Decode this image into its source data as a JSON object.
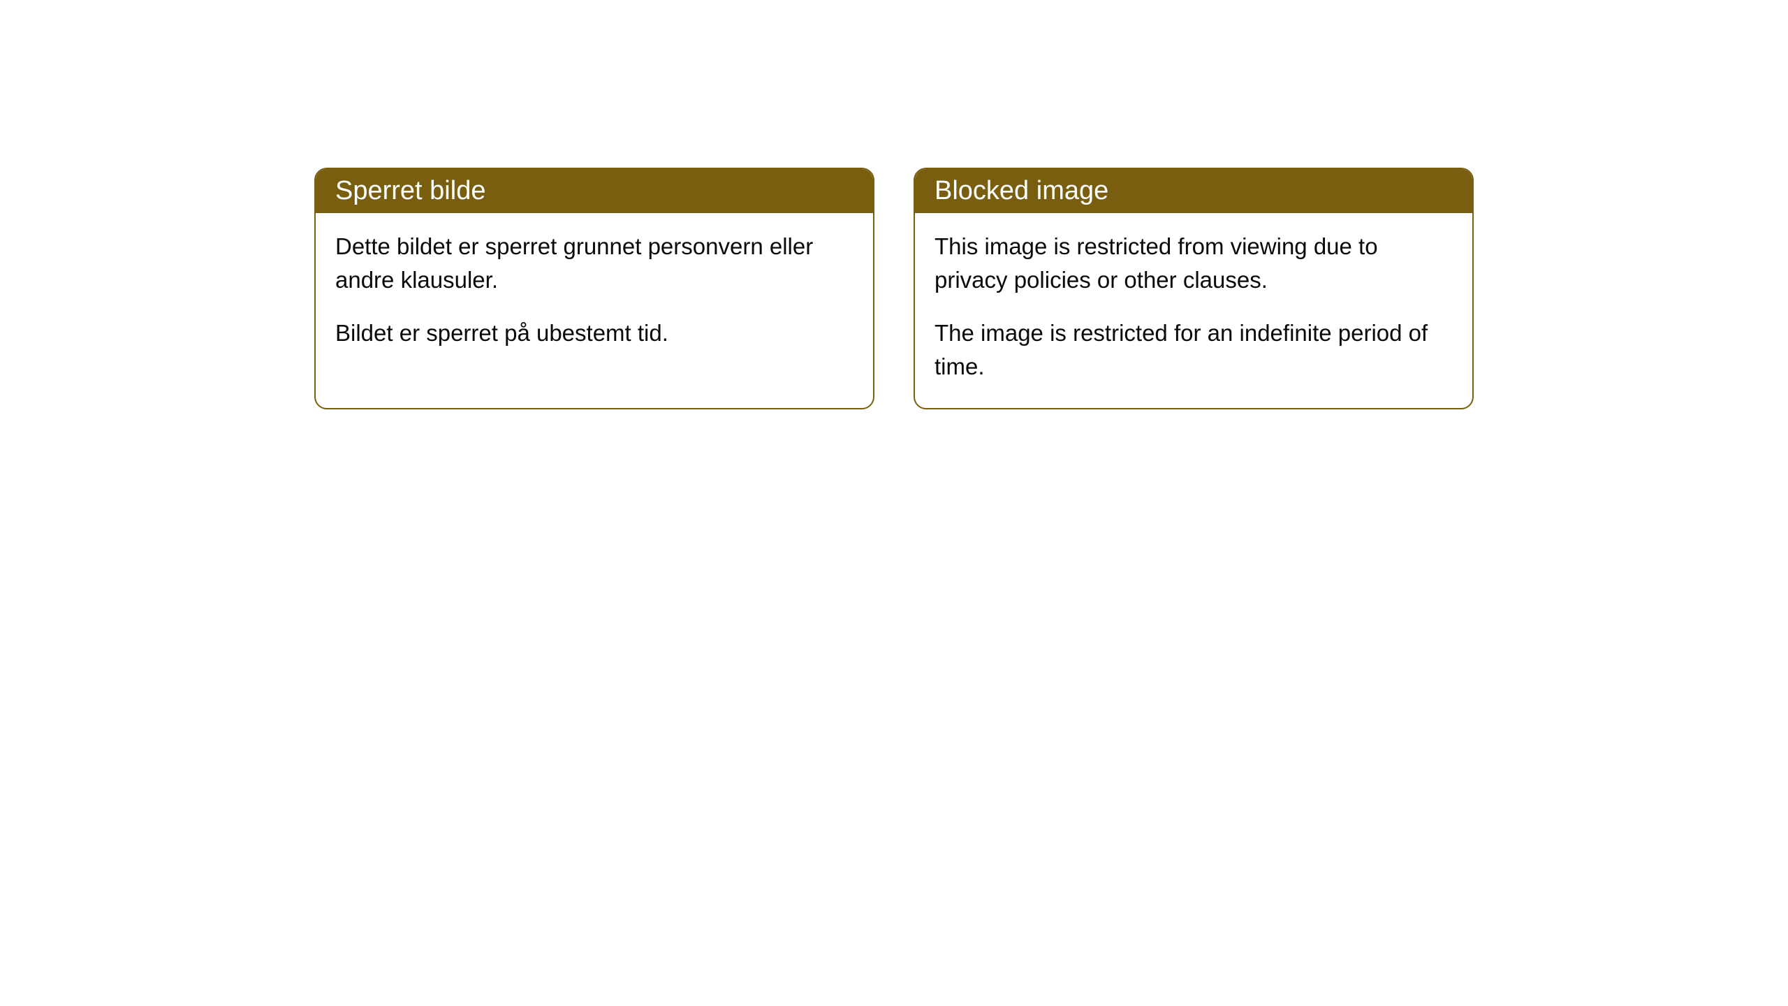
{
  "cards": [
    {
      "title": "Sperret bilde",
      "paragraph1": "Dette bildet er sperret grunnet personvern eller andre klausuler.",
      "paragraph2": "Bildet er sperret på ubestemt tid."
    },
    {
      "title": "Blocked image",
      "paragraph1": "This image is restricted from viewing due to privacy policies or other clauses.",
      "paragraph2": "The image is restricted for an indefinite period of time."
    }
  ],
  "styling": {
    "header_background": "#7a5e10",
    "header_text_color": "#ffffff",
    "border_color": "#7a5e10",
    "body_background": "#ffffff",
    "body_text_color": "#0a0a0a",
    "border_radius": 18,
    "header_fontsize": 38,
    "body_fontsize": 33
  }
}
